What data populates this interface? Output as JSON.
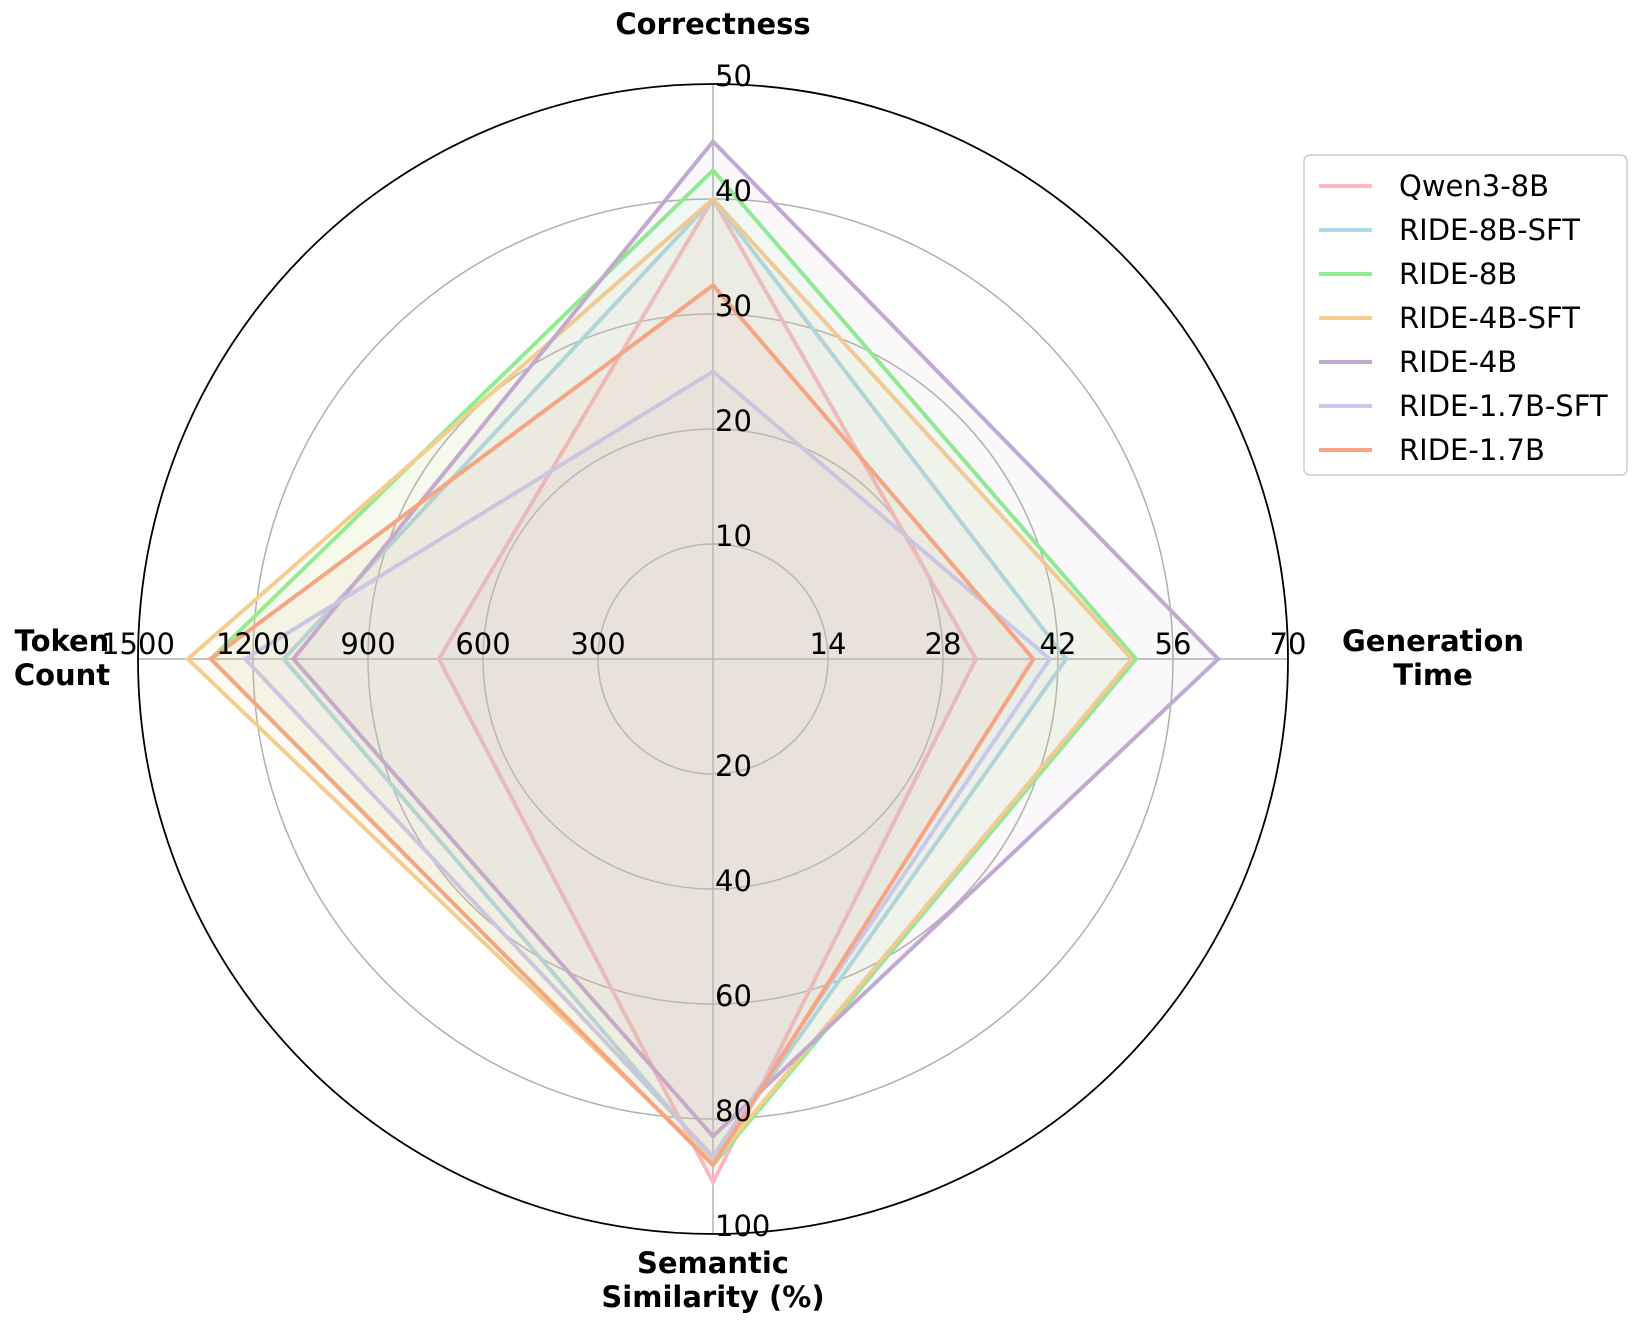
{
  "chart_data": {
    "type": "radar",
    "axes": [
      {
        "key": "correctness",
        "label": [
          "Correctness"
        ],
        "ticks": [
          10,
          20,
          30,
          40,
          50
        ],
        "range": [
          0,
          50
        ]
      },
      {
        "key": "generation_time",
        "label": [
          "Generation",
          "Time"
        ],
        "ticks": [
          14,
          28,
          42,
          56,
          70
        ],
        "range": [
          0,
          70
        ]
      },
      {
        "key": "semantic_similarity",
        "label": [
          "Semantic",
          "Similarity (%)"
        ],
        "ticks": [
          20,
          40,
          60,
          80,
          100
        ],
        "range": [
          0,
          100
        ]
      },
      {
        "key": "token_count",
        "label": [
          "Token",
          "Count"
        ],
        "ticks": [
          300,
          600,
          900,
          1200,
          1500
        ],
        "range": [
          0,
          1500
        ]
      }
    ],
    "series": [
      {
        "name": "Qwen3-8B",
        "color": "#ffb6c1",
        "values": {
          "correctness": 40.0,
          "generation_time": 32.0,
          "semantic_similarity": 91.0,
          "token_count": 715
        }
      },
      {
        "name": "RIDE-8B-SFT",
        "color": "#add8e6",
        "values": {
          "correctness": 40.0,
          "generation_time": 43.0,
          "semantic_similarity": 87.0,
          "token_count": 1120
        }
      },
      {
        "name": "RIDE-8B",
        "color": "#90ee90",
        "values": {
          "correctness": 42.5,
          "generation_time": 51.5,
          "semantic_similarity": 88.0,
          "token_count": 1310
        }
      },
      {
        "name": "RIDE-4B-SFT",
        "color": "#f5cd90",
        "values": {
          "correctness": 40.0,
          "generation_time": 51.0,
          "semantic_similarity": 87.5,
          "token_count": 1370
        }
      },
      {
        "name": "RIDE-4B",
        "color": "#c3a9ce",
        "values": {
          "correctness": 45.0,
          "generation_time": 61.5,
          "semantic_similarity": 83.0,
          "token_count": 1095
        }
      },
      {
        "name": "RIDE-1.7B-SFT",
        "color": "#c8c8e8",
        "values": {
          "correctness": 25.0,
          "generation_time": 41.0,
          "semantic_similarity": 86.5,
          "token_count": 1220
        }
      },
      {
        "name": "RIDE-1.7B",
        "color": "#f4a582",
        "values": {
          "correctness": 32.5,
          "generation_time": 39.0,
          "semantic_similarity": 88.0,
          "token_count": 1310
        }
      }
    ],
    "grid": true,
    "legend": "top-right"
  }
}
